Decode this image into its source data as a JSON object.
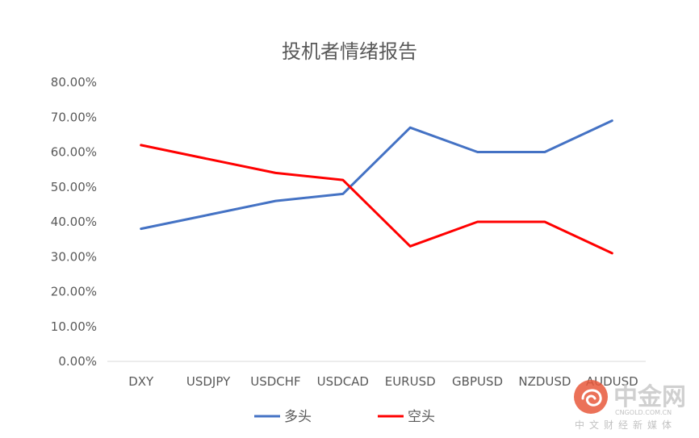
{
  "chart_data": {
    "type": "line",
    "title": "投机者情绪报告",
    "categories": [
      "DXY",
      "USDJPY",
      "USDCHF",
      "USDCAD",
      "EURUSD",
      "GBPUSD",
      "NZDUSD",
      "AUDUSD"
    ],
    "y_tick_labels": [
      "0.00%",
      "10.00%",
      "20.00%",
      "30.00%",
      "40.00%",
      "50.00%",
      "60.00%",
      "70.00%",
      "80.00%"
    ],
    "ylim": [
      0,
      0.8
    ],
    "grid": false,
    "legend_position": "bottom",
    "series": [
      {
        "name": "多头",
        "color": "#4472C4",
        "values": [
          0.38,
          0.42,
          0.46,
          0.48,
          0.67,
          0.6,
          0.6,
          0.69
        ]
      },
      {
        "name": "空头",
        "color": "#FF0000",
        "values": [
          0.62,
          0.58,
          0.54,
          0.52,
          0.33,
          0.4,
          0.4,
          0.31
        ]
      }
    ]
  },
  "watermark": {
    "name": "中金网",
    "url": "CNGOLD.COM.CN",
    "subtitle": "中文财经新媒体",
    "logo_color": "#E8593C"
  }
}
